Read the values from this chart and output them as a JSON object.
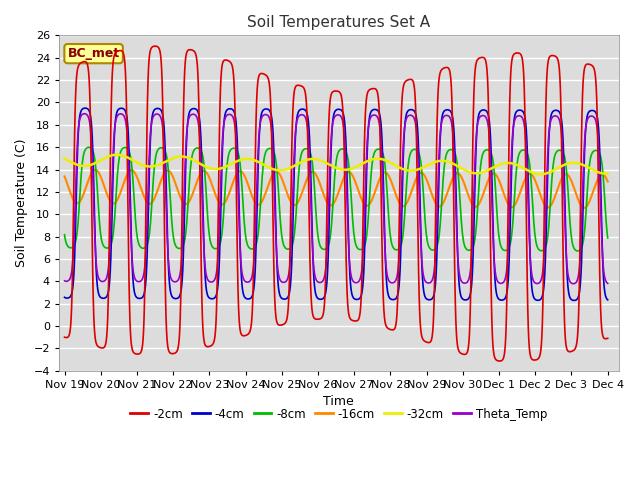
{
  "title": "Soil Temperatures Set A",
  "xlabel": "Time",
  "ylabel": "Soil Temperature (C)",
  "ylim": [
    -4,
    26
  ],
  "annotation": "BC_met",
  "bg_color": "#dcdcdc",
  "line_colors": {
    "-2cm": "#dd0000",
    "-4cm": "#0000cc",
    "-8cm": "#00bb00",
    "-16cm": "#ff8800",
    "-32cm": "#eeee00",
    "Theta_Temp": "#9900cc"
  },
  "tick_labels": [
    "Nov 19",
    "Nov 20",
    "Nov 21",
    "Nov 22",
    "Nov 23",
    "Nov 24",
    "Nov 25",
    "Nov 26",
    "Nov 27",
    "Nov 28",
    "Nov 29",
    "Nov 30",
    "Dec 1",
    "Dec 2",
    "Dec 3",
    "Dec 4"
  ],
  "legend_labels": [
    "-2cm",
    "-4cm",
    "-8cm",
    "-16cm",
    "-32cm",
    "Theta_Temp"
  ]
}
